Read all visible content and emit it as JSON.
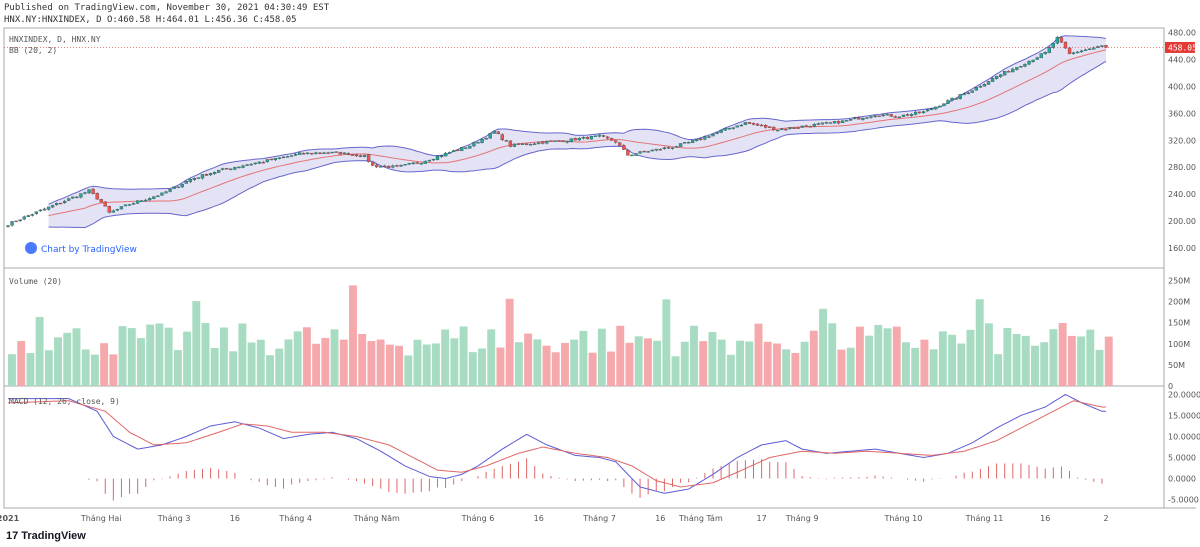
{
  "header": {
    "line1": "Published on TradingView.com, November 30, 2021 04:30:49 EST",
    "line2": "HNX.NY:HNXINDEX, D O:460.58 H:464.01 L:456.36 C:458.05"
  },
  "panes": {
    "price_label": "HNXINDEX, D, HNX.NY",
    "bb_label": "BB (20, 2)",
    "volume_label": "Volume (20)",
    "macd_label": "MACD (12, 26, close, 9)",
    "watermark": "Chart by TradingView",
    "last_price": "458.05"
  },
  "footer": {
    "brand": "TradingView",
    "brand_mark": "17"
  },
  "colors": {
    "up": "#26a69a",
    "down": "#ef5350",
    "up_vol": "#a8dcc2",
    "down_vol": "#f5a9ac",
    "bb_fill": "#dcdcf3",
    "bb_band": "#6666cc",
    "bb_mid": "#e57373",
    "macd": "#5b5bd6",
    "signal": "#e06666",
    "hist": "#e06666"
  },
  "chart_data": [
    {
      "type": "candlestick",
      "title": "HNXINDEX, D, HNX.NY",
      "indicator": "BB (20, 2)",
      "y_ticks": [
        160,
        200,
        240,
        280,
        320,
        360,
        400,
        440,
        480
      ],
      "y_tick_labels": [
        "160.00",
        "200.00",
        "240.00",
        "280.00",
        "320.00",
        "360.00",
        "400.00",
        "440.00",
        "480.00"
      ],
      "ylim": [
        130,
        487
      ],
      "x_labels": [
        "2021",
        "Tháng Hai",
        "Tháng 3",
        "16",
        "Tháng 4",
        "Tháng Năm",
        "Tháng 6",
        "16",
        "Tháng 7",
        "16",
        "Tháng Tám",
        "17",
        "Tháng 9",
        "Tháng 10",
        "Tháng 11",
        "16",
        "2"
      ],
      "x_label_days": [
        0,
        23,
        41,
        56,
        71,
        91,
        116,
        131,
        146,
        161,
        171,
        186,
        196,
        221,
        241,
        256,
        271
      ],
      "keypoints": [
        [
          0,
          195
        ],
        [
          5,
          208
        ],
        [
          12,
          225
        ],
        [
          20,
          245
        ],
        [
          23,
          228
        ],
        [
          25,
          212
        ],
        [
          30,
          225
        ],
        [
          38,
          240
        ],
        [
          45,
          262
        ],
        [
          52,
          275
        ],
        [
          60,
          285
        ],
        [
          66,
          292
        ],
        [
          72,
          300
        ],
        [
          78,
          302
        ],
        [
          84,
          300
        ],
        [
          88,
          296
        ],
        [
          90,
          282
        ],
        [
          96,
          280
        ],
        [
          102,
          288
        ],
        [
          108,
          300
        ],
        [
          114,
          312
        ],
        [
          118,
          325
        ],
        [
          120,
          333
        ],
        [
          124,
          312
        ],
        [
          130,
          316
        ],
        [
          138,
          320
        ],
        [
          146,
          326
        ],
        [
          150,
          318
        ],
        [
          153,
          298
        ],
        [
          158,
          304
        ],
        [
          164,
          310
        ],
        [
          170,
          320
        ],
        [
          176,
          334
        ],
        [
          182,
          346
        ],
        [
          185,
          342
        ],
        [
          190,
          336
        ],
        [
          198,
          342
        ],
        [
          206,
          348
        ],
        [
          214,
          358
        ],
        [
          220,
          356
        ],
        [
          226,
          362
        ],
        [
          232,
          378
        ],
        [
          238,
          395
        ],
        [
          244,
          415
        ],
        [
          250,
          432
        ],
        [
          256,
          450
        ],
        [
          259,
          472
        ],
        [
          262,
          448
        ],
        [
          264,
          452
        ],
        [
          270,
          460
        ]
      ],
      "last_close": 458.05
    },
    {
      "type": "bar",
      "title": "Volume (20)",
      "y_ticks": [
        0,
        50,
        100,
        150,
        200,
        250
      ],
      "y_tick_labels": [
        "0",
        "50M",
        "100M",
        "150M",
        "200M",
        "250M"
      ],
      "ylim": [
        0,
        270
      ]
    },
    {
      "type": "line",
      "title": "MACD (12, 26, close, 9)",
      "series": [
        {
          "name": "MACD",
          "keypoints": [
            [
              0,
              19
            ],
            [
              15,
              19
            ],
            [
              22,
              16
            ],
            [
              26,
              10
            ],
            [
              32,
              7
            ],
            [
              38,
              8
            ],
            [
              44,
              10
            ],
            [
              50,
              12.5
            ],
            [
              56,
              13.5
            ],
            [
              62,
              12
            ],
            [
              68,
              9.5
            ],
            [
              74,
              10.5
            ],
            [
              80,
              11
            ],
            [
              86,
              9.5
            ],
            [
              92,
              6.5
            ],
            [
              98,
              3
            ],
            [
              104,
              0.5
            ],
            [
              108,
              0
            ],
            [
              112,
              1
            ],
            [
              116,
              3
            ],
            [
              122,
              7
            ],
            [
              128,
              10.5
            ],
            [
              133,
              8
            ],
            [
              140,
              5.5
            ],
            [
              146,
              5
            ],
            [
              150,
              4
            ],
            [
              156,
              -2
            ],
            [
              162,
              -3.5
            ],
            [
              168,
              -2.5
            ],
            [
              174,
              1
            ],
            [
              180,
              5
            ],
            [
              186,
              8
            ],
            [
              192,
              9
            ],
            [
              196,
              7
            ],
            [
              202,
              6
            ],
            [
              208,
              6.5
            ],
            [
              214,
              7
            ],
            [
              220,
              6
            ],
            [
              226,
              5
            ],
            [
              232,
              6
            ],
            [
              238,
              8.5
            ],
            [
              244,
              12
            ],
            [
              250,
              15
            ],
            [
              256,
              17
            ],
            [
              261,
              20
            ],
            [
              265,
              18
            ],
            [
              270,
              16
            ]
          ]
        },
        {
          "name": "Signal",
          "keypoints": [
            [
              0,
              18
            ],
            [
              15,
              18.5
            ],
            [
              24,
              16
            ],
            [
              30,
              11
            ],
            [
              36,
              8
            ],
            [
              44,
              8.5
            ],
            [
              52,
              11
            ],
            [
              58,
              13
            ],
            [
              64,
              12.5
            ],
            [
              70,
              11
            ],
            [
              78,
              11
            ],
            [
              86,
              10
            ],
            [
              94,
              8
            ],
            [
              100,
              5
            ],
            [
              106,
              2
            ],
            [
              112,
              1.5
            ],
            [
              118,
              3
            ],
            [
              126,
              6
            ],
            [
              132,
              7.5
            ],
            [
              140,
              6
            ],
            [
              148,
              5
            ],
            [
              154,
              3
            ],
            [
              160,
              -0.5
            ],
            [
              166,
              -2
            ],
            [
              174,
              -1
            ],
            [
              180,
              1.5
            ],
            [
              188,
              5
            ],
            [
              196,
              6.5
            ],
            [
              204,
              6
            ],
            [
              212,
              6.5
            ],
            [
              220,
              6
            ],
            [
              228,
              5.5
            ],
            [
              236,
              6.5
            ],
            [
              244,
              9
            ],
            [
              252,
              13
            ],
            [
              258,
              16
            ],
            [
              263,
              18.5
            ],
            [
              270,
              17
            ]
          ]
        }
      ],
      "y_ticks": [
        -5,
        0,
        5,
        10,
        15,
        20
      ],
      "y_tick_labels": [
        "-5.0000",
        "0.0000",
        "5.0000",
        "10.0000",
        "15.0000",
        "20.0000"
      ],
      "ylim": [
        -7,
        22
      ]
    }
  ]
}
